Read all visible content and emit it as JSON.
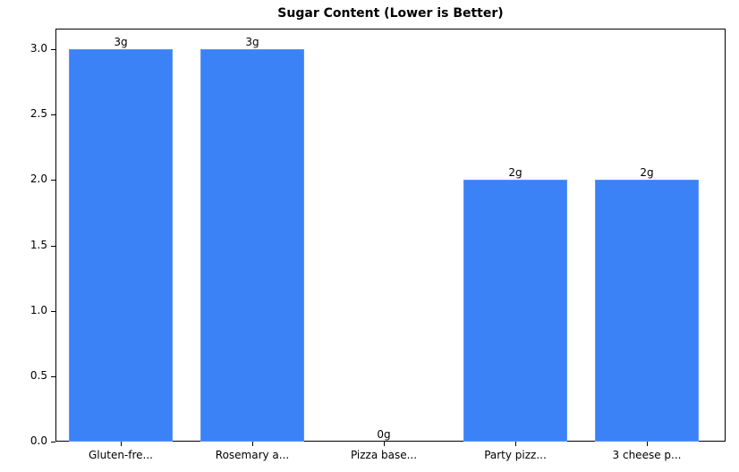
{
  "chart_data": {
    "type": "bar",
    "title": "Sugar Content (Lower is Better)",
    "xlabel": "",
    "ylabel": "",
    "categories": [
      "Gluten-fre...",
      "Rosemary a...",
      "Pizza base...",
      "Party pizz...",
      "3 cheese p..."
    ],
    "values": [
      3,
      3,
      0,
      2,
      2
    ],
    "value_labels": [
      "3g",
      "3g",
      "0g",
      "2g",
      "2g"
    ],
    "ylim": [
      0,
      3.15
    ],
    "yticks": [
      "0.0",
      "0.5",
      "1.0",
      "1.5",
      "2.0",
      "2.5",
      "3.0"
    ],
    "grid": false,
    "legend": null,
    "bar_color": "#3b82f6"
  }
}
